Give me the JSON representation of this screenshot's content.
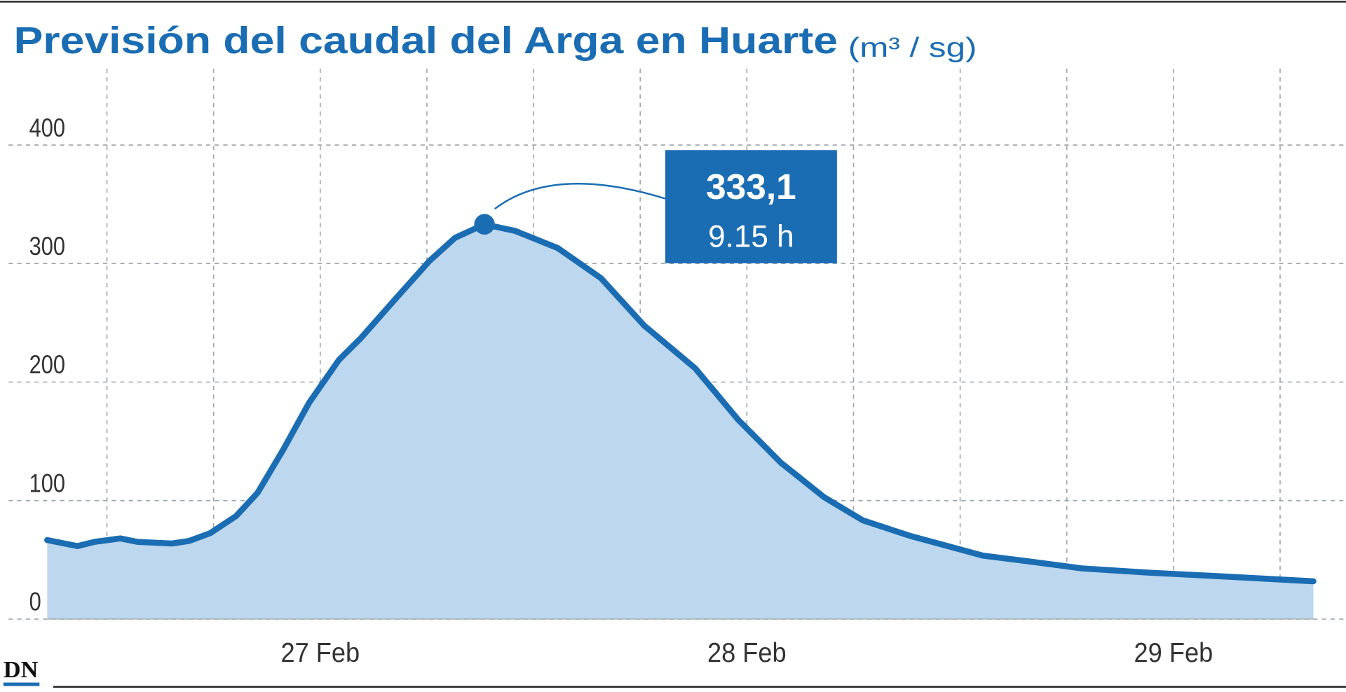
{
  "chart_data": {
    "type": "area",
    "title": "Previsión del caudal del Arga en Huarte",
    "unit": "(m³ / sg)",
    "logo": "DN",
    "x": [
      26.36,
      26.431,
      26.471,
      26.531,
      26.571,
      26.652,
      26.692,
      26.742,
      26.803,
      26.853,
      26.913,
      26.974,
      27.044,
      27.095,
      27.175,
      27.256,
      27.316,
      27.385,
      27.457,
      27.557,
      27.658,
      27.759,
      27.879,
      27.98,
      28.08,
      28.181,
      28.272,
      28.382,
      28.553,
      28.664,
      28.785,
      28.946,
      29.107,
      29.328
    ],
    "values": [
      66.7,
      61.6,
      65.2,
      68.1,
      65.2,
      63.8,
      65.9,
      72.5,
      87.0,
      106.5,
      142.8,
      182.6,
      218.8,
      237.0,
      269.6,
      302.2,
      321.7,
      333.1,
      327.5,
      313.0,
      287.7,
      247.8,
      211.6,
      168.1,
      131.9,
      102.9,
      83.3,
      70.3,
      53.6,
      48.6,
      42.8,
      39.1,
      36.2,
      31.9
    ],
    "color": "#1b6db3",
    "fill": "#bdd7ee",
    "xlim": [
      26.36,
      29.328
    ],
    "xticks": [
      {
        "value": 27,
        "label": "27 Feb"
      },
      {
        "value": 28,
        "label": "28 Feb"
      },
      {
        "value": 29,
        "label": "29 Feb"
      }
    ],
    "xgrid": [
      26.5,
      26.75,
      27.25,
      27.5,
      27.75,
      28.25,
      28.5,
      28.75,
      29.25
    ],
    "ylim": [
      0,
      450
    ],
    "yticks": [
      0,
      100,
      200,
      300,
      400
    ],
    "grid": true,
    "annotation": {
      "x": 27.385,
      "value": 333.1,
      "value_label": "333,1",
      "time": "9.15 h"
    }
  }
}
